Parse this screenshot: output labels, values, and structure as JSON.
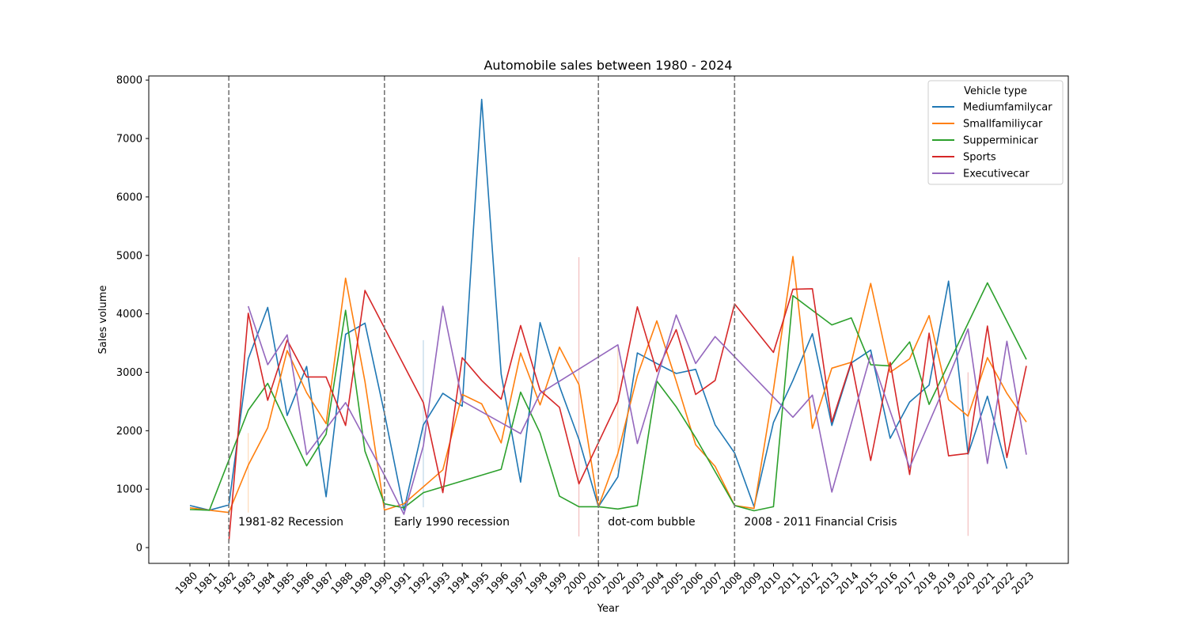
{
  "chart_data": {
    "type": "line",
    "title": "Automobile sales between 1980 - 2024",
    "xlabel": "Year",
    "ylabel": "Sales volume",
    "ylim": [
      -270,
      8070
    ],
    "yticks": [
      0,
      1000,
      2000,
      3000,
      4000,
      5000,
      6000,
      7000,
      8000
    ],
    "legend": {
      "title": "Vehicle type",
      "placement": "top-right"
    },
    "x": [
      1980,
      1981,
      1982,
      1983,
      1984,
      1985,
      1986,
      1987,
      1988,
      1989,
      1990,
      1991,
      1992,
      1993,
      1994,
      1995,
      1996,
      1997,
      1998,
      1999,
      2000,
      2001,
      2002,
      2003,
      2004,
      2005,
      2006,
      2007,
      2008,
      2009,
      2010,
      2011,
      2012,
      2013,
      2014,
      2015,
      2016,
      2017,
      2018,
      2019,
      2020,
      2021,
      2022,
      2023
    ],
    "series": [
      {
        "name": "Mediumfamilycar",
        "color": "#1f77b4",
        "points": [
          [
            1980,
            720
          ],
          [
            1981,
            640
          ],
          [
            1982,
            730
          ],
          [
            1983,
            3230
          ],
          [
            1984,
            4110
          ],
          [
            1985,
            2260
          ],
          [
            1986,
            3100
          ],
          [
            1987,
            870
          ],
          [
            1988,
            3650
          ],
          [
            1989,
            3840
          ],
          [
            1990,
            2300
          ],
          [
            1991,
            640
          ],
          [
            1992,
            2100
          ],
          [
            1993,
            2640
          ],
          [
            1994,
            2420
          ],
          [
            1995,
            7670
          ],
          [
            1996,
            2970
          ],
          [
            1997,
            1120
          ],
          [
            1998,
            3850
          ],
          [
            1999,
            2760
          ],
          [
            2000,
            1850
          ],
          [
            2001,
            700
          ],
          [
            2002,
            1210
          ],
          [
            2003,
            3330
          ],
          [
            2004,
            3150
          ],
          [
            2005,
            2980
          ],
          [
            2006,
            3050
          ],
          [
            2007,
            2100
          ],
          [
            2008,
            1620
          ],
          [
            2009,
            700
          ],
          [
            2010,
            2140
          ],
          [
            2011,
            2860
          ],
          [
            2012,
            3660
          ],
          [
            2013,
            2090
          ],
          [
            2014,
            3160
          ],
          [
            2015,
            3380
          ],
          [
            2016,
            1870
          ],
          [
            2017,
            2490
          ],
          [
            2018,
            2780
          ],
          [
            2019,
            4560
          ],
          [
            2020,
            1600
          ],
          [
            2021,
            2590
          ],
          [
            2022,
            1350
          ]
        ]
      },
      {
        "name": "Smallfamiliycar",
        "color": "#ff7f0e",
        "points": [
          [
            1980,
            680
          ],
          [
            1981,
            640
          ],
          [
            1982,
            600
          ],
          [
            1983,
            1410
          ],
          [
            1984,
            2050
          ],
          [
            1985,
            3370
          ],
          [
            1986,
            2650
          ],
          [
            1987,
            2120
          ],
          [
            1988,
            4610
          ],
          [
            1989,
            2840
          ],
          [
            1990,
            640
          ],
          [
            1991,
            750
          ],
          [
            1993,
            1330
          ],
          [
            1994,
            2620
          ],
          [
            1995,
            2460
          ],
          [
            1996,
            1790
          ],
          [
            1997,
            3330
          ],
          [
            1998,
            2440
          ],
          [
            1999,
            3430
          ],
          [
            2000,
            2790
          ],
          [
            2001,
            700
          ],
          [
            2002,
            1610
          ],
          [
            2003,
            2940
          ],
          [
            2004,
            3880
          ],
          [
            2005,
            2850
          ],
          [
            2006,
            1760
          ],
          [
            2007,
            1390
          ],
          [
            2008,
            720
          ],
          [
            2009,
            670
          ],
          [
            2010,
            2700
          ],
          [
            2011,
            4980
          ],
          [
            2012,
            2040
          ],
          [
            2013,
            3070
          ],
          [
            2014,
            3170
          ],
          [
            2015,
            4520
          ],
          [
            2016,
            3000
          ],
          [
            2017,
            3230
          ],
          [
            2018,
            3970
          ],
          [
            2019,
            2530
          ],
          [
            2020,
            2250
          ],
          [
            2021,
            3250
          ],
          [
            2022,
            2640
          ],
          [
            2023,
            2150
          ]
        ]
      },
      {
        "name": "Supperminicar",
        "color": "#2ca02c",
        "points": [
          [
            1980,
            650
          ],
          [
            1981,
            640
          ],
          [
            1983,
            2350
          ],
          [
            1984,
            2810
          ],
          [
            1985,
            2100
          ],
          [
            1986,
            1400
          ],
          [
            1987,
            1940
          ],
          [
            1988,
            4060
          ],
          [
            1989,
            1650
          ],
          [
            1990,
            750
          ],
          [
            1991,
            680
          ],
          [
            1992,
            940
          ],
          [
            1996,
            1340
          ],
          [
            1997,
            2660
          ],
          [
            1998,
            1960
          ],
          [
            1999,
            880
          ],
          [
            2000,
            700
          ],
          [
            2001,
            700
          ],
          [
            2002,
            660
          ],
          [
            2003,
            720
          ],
          [
            2004,
            2850
          ],
          [
            2005,
            2410
          ],
          [
            2006,
            1880
          ],
          [
            2008,
            720
          ],
          [
            2009,
            630
          ],
          [
            2010,
            700
          ],
          [
            2011,
            4310
          ],
          [
            2013,
            3810
          ],
          [
            2014,
            3930
          ],
          [
            2015,
            3130
          ],
          [
            2016,
            3110
          ],
          [
            2017,
            3520
          ],
          [
            2018,
            2450
          ],
          [
            2021,
            4530
          ],
          [
            2023,
            3220
          ]
        ]
      },
      {
        "name": "Sports",
        "color": "#d62728",
        "points": [
          [
            1982,
            100
          ],
          [
            1983,
            4010
          ],
          [
            1984,
            2520
          ],
          [
            1985,
            3550
          ],
          [
            1986,
            2920
          ],
          [
            1987,
            2920
          ],
          [
            1988,
            2090
          ],
          [
            1989,
            4400
          ],
          [
            1992,
            2480
          ],
          [
            1993,
            940
          ],
          [
            1994,
            3250
          ],
          [
            1995,
            2860
          ],
          [
            1996,
            2540
          ],
          [
            1997,
            3800
          ],
          [
            1998,
            2690
          ],
          [
            1999,
            2400
          ],
          [
            2000,
            1090
          ],
          [
            2002,
            2500
          ],
          [
            2003,
            4120
          ],
          [
            2004,
            3010
          ],
          [
            2005,
            3730
          ],
          [
            2006,
            2620
          ],
          [
            2007,
            2860
          ],
          [
            2008,
            4170
          ],
          [
            2010,
            3340
          ],
          [
            2011,
            4420
          ],
          [
            2012,
            4430
          ],
          [
            2013,
            2150
          ],
          [
            2014,
            3180
          ],
          [
            2015,
            1490
          ],
          [
            2016,
            3170
          ],
          [
            2017,
            1250
          ],
          [
            2018,
            3670
          ],
          [
            2019,
            1570
          ],
          [
            2020,
            1610
          ],
          [
            2021,
            3790
          ],
          [
            2022,
            1540
          ],
          [
            2023,
            3110
          ]
        ]
      },
      {
        "name": "Executivecar",
        "color": "#9467bd",
        "points": [
          [
            1983,
            4130
          ],
          [
            1984,
            3130
          ],
          [
            1985,
            3640
          ],
          [
            1986,
            1590
          ],
          [
            1988,
            2480
          ],
          [
            1990,
            1240
          ],
          [
            1991,
            570
          ],
          [
            1992,
            1740
          ],
          [
            1993,
            4130
          ],
          [
            1994,
            2510
          ],
          [
            1997,
            1950
          ],
          [
            1998,
            2640
          ],
          [
            2002,
            3470
          ],
          [
            2003,
            1780
          ],
          [
            2005,
            3980
          ],
          [
            2006,
            3150
          ],
          [
            2007,
            3610
          ],
          [
            2011,
            2230
          ],
          [
            2012,
            2610
          ],
          [
            2013,
            950
          ],
          [
            2015,
            3300
          ],
          [
            2017,
            1370
          ],
          [
            2019,
            2910
          ],
          [
            2020,
            3740
          ],
          [
            2021,
            1440
          ],
          [
            2022,
            3530
          ],
          [
            2023,
            1590
          ]
        ]
      }
    ],
    "faint_marks": [
      {
        "x": 1983,
        "y0": 1960,
        "y1": 600,
        "color": "#ff7f0e"
      },
      {
        "x": 1992,
        "y0": 3550,
        "y1": 690,
        "color": "#1f77b4"
      },
      {
        "x": 2000,
        "y0": 4970,
        "y1": 190,
        "color": "#d62728"
      },
      {
        "x": 2002,
        "y0": 3420,
        "y1": 1300,
        "color": "#ff7f0e"
      },
      {
        "x": 2020,
        "y0": 3000,
        "y1": 200,
        "color": "#d62728"
      }
    ],
    "recessions": [
      {
        "x": 1982,
        "label": "1981-82 Recession"
      },
      {
        "x": 1990,
        "label": "Early 1990 recession"
      },
      {
        "x": 2001,
        "label": "dot-com bubble"
      },
      {
        "x": 2008,
        "label": "2008 - 2011 Financial Crisis"
      }
    ],
    "annotation_y": 450
  }
}
